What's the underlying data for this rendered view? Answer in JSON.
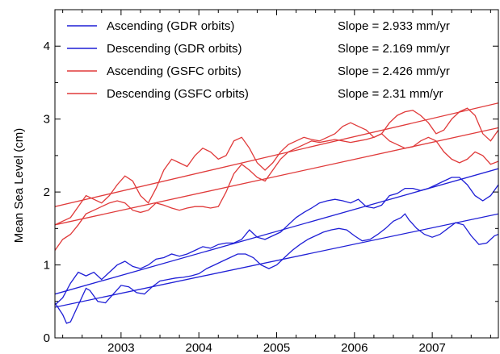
{
  "chart_data": {
    "type": "line",
    "title": "",
    "xlabel": "",
    "ylabel": "Mean Sea Level (cm)",
    "xlim": [
      2002.15,
      2007.85
    ],
    "ylim": [
      0,
      4.5
    ],
    "xticks": [
      2003,
      2004,
      2005,
      2006,
      2007
    ],
    "yticks": [
      0,
      1,
      2,
      3,
      4
    ],
    "grid": false,
    "legend_position": "top-left",
    "series": [
      {
        "name": "Ascending (GDR orbits)",
        "color": "#1f1fd6",
        "slope_label": "Slope = 2.933 mm/yr",
        "points": [
          [
            2002.15,
            0.45
          ],
          [
            2002.25,
            0.55
          ],
          [
            2002.35,
            0.75
          ],
          [
            2002.45,
            0.9
          ],
          [
            2002.55,
            0.85
          ],
          [
            2002.65,
            0.9
          ],
          [
            2002.75,
            0.8
          ],
          [
            2002.85,
            0.9
          ],
          [
            2002.95,
            1.0
          ],
          [
            2003.05,
            1.05
          ],
          [
            2003.15,
            0.98
          ],
          [
            2003.25,
            0.95
          ],
          [
            2003.35,
            1.0
          ],
          [
            2003.45,
            1.08
          ],
          [
            2003.55,
            1.1
          ],
          [
            2003.65,
            1.15
          ],
          [
            2003.75,
            1.12
          ],
          [
            2003.85,
            1.15
          ],
          [
            2003.95,
            1.2
          ],
          [
            2004.05,
            1.25
          ],
          [
            2004.15,
            1.23
          ],
          [
            2004.25,
            1.28
          ],
          [
            2004.35,
            1.3
          ],
          [
            2004.45,
            1.3
          ],
          [
            2004.55,
            1.35
          ],
          [
            2004.65,
            1.48
          ],
          [
            2004.75,
            1.38
          ],
          [
            2004.85,
            1.35
          ],
          [
            2004.95,
            1.4
          ],
          [
            2005.05,
            1.45
          ],
          [
            2005.15,
            1.55
          ],
          [
            2005.25,
            1.65
          ],
          [
            2005.35,
            1.72
          ],
          [
            2005.45,
            1.78
          ],
          [
            2005.55,
            1.85
          ],
          [
            2005.65,
            1.88
          ],
          [
            2005.75,
            1.9
          ],
          [
            2005.85,
            1.88
          ],
          [
            2005.95,
            1.85
          ],
          [
            2006.05,
            1.9
          ],
          [
            2006.15,
            1.8
          ],
          [
            2006.25,
            1.78
          ],
          [
            2006.35,
            1.82
          ],
          [
            2006.45,
            1.95
          ],
          [
            2006.55,
            1.98
          ],
          [
            2006.65,
            2.05
          ],
          [
            2006.75,
            2.05
          ],
          [
            2006.85,
            2.02
          ],
          [
            2006.95,
            2.05
          ],
          [
            2007.05,
            2.1
          ],
          [
            2007.15,
            2.15
          ],
          [
            2007.25,
            2.2
          ],
          [
            2007.35,
            2.2
          ],
          [
            2007.45,
            2.1
          ],
          [
            2007.55,
            1.95
          ],
          [
            2007.65,
            1.88
          ],
          [
            2007.75,
            1.95
          ],
          [
            2007.85,
            2.1
          ]
        ],
        "fit": [
          [
            2002.15,
            0.6
          ],
          [
            2007.85,
            2.32
          ]
        ]
      },
      {
        "name": "Descending (GDR orbits)",
        "color": "#1f1fd6",
        "slope_label": "Slope = 2.169 mm/yr",
        "points": [
          [
            2002.15,
            0.48
          ],
          [
            2002.25,
            0.32
          ],
          [
            2002.3,
            0.2
          ],
          [
            2002.35,
            0.22
          ],
          [
            2002.45,
            0.45
          ],
          [
            2002.55,
            0.68
          ],
          [
            2002.6,
            0.65
          ],
          [
            2002.7,
            0.5
          ],
          [
            2002.8,
            0.48
          ],
          [
            2002.9,
            0.6
          ],
          [
            2003.0,
            0.72
          ],
          [
            2003.1,
            0.7
          ],
          [
            2003.2,
            0.62
          ],
          [
            2003.3,
            0.6
          ],
          [
            2003.4,
            0.7
          ],
          [
            2003.5,
            0.78
          ],
          [
            2003.6,
            0.8
          ],
          [
            2003.7,
            0.82
          ],
          [
            2003.8,
            0.83
          ],
          [
            2003.9,
            0.85
          ],
          [
            2004.0,
            0.88
          ],
          [
            2004.1,
            0.95
          ],
          [
            2004.2,
            1.0
          ],
          [
            2004.3,
            1.05
          ],
          [
            2004.4,
            1.1
          ],
          [
            2004.5,
            1.15
          ],
          [
            2004.6,
            1.15
          ],
          [
            2004.7,
            1.1
          ],
          [
            2004.8,
            1.0
          ],
          [
            2004.9,
            0.95
          ],
          [
            2005.0,
            1.0
          ],
          [
            2005.1,
            1.1
          ],
          [
            2005.2,
            1.2
          ],
          [
            2005.3,
            1.28
          ],
          [
            2005.4,
            1.35
          ],
          [
            2005.5,
            1.4
          ],
          [
            2005.6,
            1.45
          ],
          [
            2005.7,
            1.48
          ],
          [
            2005.8,
            1.5
          ],
          [
            2005.9,
            1.48
          ],
          [
            2006.0,
            1.4
          ],
          [
            2006.1,
            1.33
          ],
          [
            2006.2,
            1.35
          ],
          [
            2006.3,
            1.42
          ],
          [
            2006.4,
            1.5
          ],
          [
            2006.5,
            1.6
          ],
          [
            2006.6,
            1.65
          ],
          [
            2006.65,
            1.7
          ],
          [
            2006.7,
            1.62
          ],
          [
            2006.8,
            1.5
          ],
          [
            2006.9,
            1.42
          ],
          [
            2007.0,
            1.38
          ],
          [
            2007.1,
            1.42
          ],
          [
            2007.2,
            1.5
          ],
          [
            2007.3,
            1.58
          ],
          [
            2007.4,
            1.55
          ],
          [
            2007.5,
            1.4
          ],
          [
            2007.6,
            1.28
          ],
          [
            2007.7,
            1.3
          ],
          [
            2007.8,
            1.4
          ],
          [
            2007.85,
            1.42
          ]
        ],
        "fit": [
          [
            2002.15,
            0.42
          ],
          [
            2007.85,
            1.7
          ]
        ]
      },
      {
        "name": "Ascending (GSFC orbits)",
        "color": "#e03a3a",
        "slope_label": "Slope = 2.426 mm/yr",
        "points": [
          [
            2002.15,
            1.55
          ],
          [
            2002.25,
            1.6
          ],
          [
            2002.35,
            1.65
          ],
          [
            2002.45,
            1.8
          ],
          [
            2002.55,
            1.95
          ],
          [
            2002.65,
            1.9
          ],
          [
            2002.75,
            1.85
          ],
          [
            2002.85,
            1.95
          ],
          [
            2002.95,
            2.1
          ],
          [
            2003.05,
            2.22
          ],
          [
            2003.15,
            2.15
          ],
          [
            2003.25,
            1.95
          ],
          [
            2003.35,
            1.85
          ],
          [
            2003.45,
            2.05
          ],
          [
            2003.55,
            2.3
          ],
          [
            2003.65,
            2.45
          ],
          [
            2003.75,
            2.4
          ],
          [
            2003.85,
            2.35
          ],
          [
            2003.95,
            2.5
          ],
          [
            2004.05,
            2.6
          ],
          [
            2004.15,
            2.55
          ],
          [
            2004.25,
            2.45
          ],
          [
            2004.35,
            2.5
          ],
          [
            2004.45,
            2.7
          ],
          [
            2004.55,
            2.75
          ],
          [
            2004.65,
            2.6
          ],
          [
            2004.75,
            2.4
          ],
          [
            2004.85,
            2.3
          ],
          [
            2004.95,
            2.4
          ],
          [
            2005.05,
            2.55
          ],
          [
            2005.15,
            2.65
          ],
          [
            2005.25,
            2.7
          ],
          [
            2005.35,
            2.75
          ],
          [
            2005.45,
            2.72
          ],
          [
            2005.55,
            2.7
          ],
          [
            2005.65,
            2.75
          ],
          [
            2005.75,
            2.8
          ],
          [
            2005.85,
            2.9
          ],
          [
            2005.95,
            2.95
          ],
          [
            2006.05,
            2.9
          ],
          [
            2006.15,
            2.85
          ],
          [
            2006.25,
            2.75
          ],
          [
            2006.35,
            2.8
          ],
          [
            2006.45,
            2.95
          ],
          [
            2006.55,
            3.05
          ],
          [
            2006.65,
            3.1
          ],
          [
            2006.75,
            3.12
          ],
          [
            2006.85,
            3.05
          ],
          [
            2006.95,
            2.95
          ],
          [
            2007.05,
            2.8
          ],
          [
            2007.15,
            2.85
          ],
          [
            2007.25,
            3.0
          ],
          [
            2007.35,
            3.1
          ],
          [
            2007.45,
            3.15
          ],
          [
            2007.55,
            3.05
          ],
          [
            2007.65,
            2.8
          ],
          [
            2007.75,
            2.7
          ],
          [
            2007.85,
            2.85
          ]
        ],
        "fit": [
          [
            2002.15,
            1.8
          ],
          [
            2007.85,
            3.22
          ]
        ]
      },
      {
        "name": "Descending (GSFC orbits)",
        "color": "#e03a3a",
        "slope_label": "Slope = 2.31 mm/yr",
        "points": [
          [
            2002.15,
            1.2
          ],
          [
            2002.25,
            1.35
          ],
          [
            2002.35,
            1.42
          ],
          [
            2002.45,
            1.55
          ],
          [
            2002.55,
            1.7
          ],
          [
            2002.65,
            1.75
          ],
          [
            2002.75,
            1.8
          ],
          [
            2002.85,
            1.85
          ],
          [
            2002.95,
            1.88
          ],
          [
            2003.05,
            1.85
          ],
          [
            2003.15,
            1.75
          ],
          [
            2003.25,
            1.72
          ],
          [
            2003.35,
            1.75
          ],
          [
            2003.45,
            1.85
          ],
          [
            2003.55,
            1.82
          ],
          [
            2003.65,
            1.78
          ],
          [
            2003.75,
            1.75
          ],
          [
            2003.85,
            1.78
          ],
          [
            2003.95,
            1.8
          ],
          [
            2004.05,
            1.8
          ],
          [
            2004.15,
            1.78
          ],
          [
            2004.25,
            1.8
          ],
          [
            2004.35,
            2.0
          ],
          [
            2004.45,
            2.25
          ],
          [
            2004.55,
            2.38
          ],
          [
            2004.65,
            2.3
          ],
          [
            2004.75,
            2.2
          ],
          [
            2004.85,
            2.15
          ],
          [
            2004.95,
            2.3
          ],
          [
            2005.05,
            2.45
          ],
          [
            2005.15,
            2.55
          ],
          [
            2005.25,
            2.6
          ],
          [
            2005.35,
            2.65
          ],
          [
            2005.45,
            2.7
          ],
          [
            2005.55,
            2.68
          ],
          [
            2005.65,
            2.7
          ],
          [
            2005.75,
            2.72
          ],
          [
            2005.85,
            2.7
          ],
          [
            2005.95,
            2.68
          ],
          [
            2006.05,
            2.7
          ],
          [
            2006.15,
            2.72
          ],
          [
            2006.25,
            2.75
          ],
          [
            2006.35,
            2.8
          ],
          [
            2006.45,
            2.7
          ],
          [
            2006.55,
            2.65
          ],
          [
            2006.65,
            2.6
          ],
          [
            2006.75,
            2.62
          ],
          [
            2006.85,
            2.7
          ],
          [
            2006.95,
            2.75
          ],
          [
            2007.05,
            2.7
          ],
          [
            2007.15,
            2.55
          ],
          [
            2007.25,
            2.45
          ],
          [
            2007.35,
            2.4
          ],
          [
            2007.45,
            2.45
          ],
          [
            2007.55,
            2.55
          ],
          [
            2007.65,
            2.5
          ],
          [
            2007.75,
            2.38
          ],
          [
            2007.85,
            2.42
          ]
        ],
        "fit": [
          [
            2002.15,
            1.55
          ],
          [
            2007.85,
            2.88
          ]
        ]
      }
    ]
  }
}
